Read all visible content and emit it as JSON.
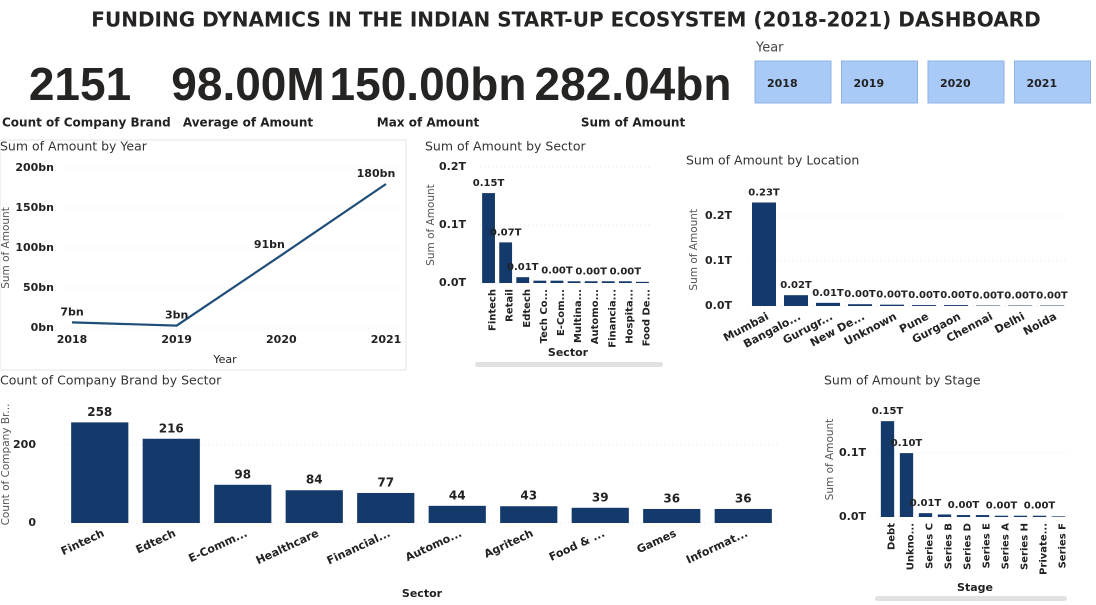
{
  "title": "FUNDING DYNAMICS IN THE INDIAN START-UP ECOSYSTEM (2018-2021) DASHBOARD",
  "kpis": [
    {
      "value": "2151",
      "label": "Count of Company Brand"
    },
    {
      "value": "98.00M",
      "label": "Average of Amount"
    },
    {
      "value": "150.00bn",
      "label": "Max of Amount"
    },
    {
      "value": "282.04bn",
      "label": "Sum of Amount"
    }
  ],
  "slicer": {
    "title": "Year",
    "options": [
      "2018",
      "2019",
      "2020",
      "2021"
    ]
  },
  "chart_data": [
    {
      "type": "line",
      "title": "Sum of Amount by Year",
      "x_label": "Year",
      "y_label": "Sum of Amount",
      "categories": [
        "2018",
        "2019",
        "2020",
        "2021"
      ],
      "values": [
        7,
        3,
        91,
        180
      ],
      "value_labels": [
        "7bn",
        "3bn",
        "91bn",
        "180bn"
      ],
      "color": "#1f4e79",
      "ylim": [
        0,
        200
      ],
      "yticks": [
        {
          "value": 0,
          "label": "0bn"
        },
        {
          "value": 50,
          "label": "50bn"
        },
        {
          "value": 100,
          "label": "100bn"
        },
        {
          "value": 150,
          "label": "150bn"
        },
        {
          "value": 200,
          "label": "200bn"
        }
      ],
      "grid": true
    },
    {
      "type": "bar",
      "title": "Sum of Amount by Sector",
      "x_label": "Sector",
      "y_label": "Sum of Amount",
      "categories": [
        "Fintech",
        "Retail",
        "Edtech",
        "Tech Co...",
        "E-Com...",
        "Multina...",
        "Automo...",
        "Financia...",
        "Hospita...",
        "Food De..."
      ],
      "values": [
        0.155,
        0.07,
        0.01,
        0.004,
        0.004,
        0.003,
        0.003,
        0.003,
        0.003,
        0.002
      ],
      "value_labels": [
        "0.15T",
        "0.07T",
        "0.01T",
        null,
        "0.00T",
        null,
        "0.00T",
        null,
        "0.00T",
        null
      ],
      "color": "#14396b",
      "ylim": [
        0,
        0.2
      ],
      "yticks": [
        {
          "value": 0,
          "label": "0.0T"
        },
        {
          "value": 0.1,
          "label": "0.1T"
        },
        {
          "value": 0.2,
          "label": "0.2T"
        }
      ],
      "grid": true
    },
    {
      "type": "bar",
      "title": "Sum of Amount by Location",
      "y_label": "Sum of Amount",
      "categories": [
        "Mumbai",
        "Bangalo...",
        "Gurugr...",
        "New De...",
        "Unknown",
        "Pune",
        "Gurgaon",
        "Chennai",
        "Delhi",
        "Noida"
      ],
      "values": [
        0.23,
        0.024,
        0.007,
        0.004,
        0.003,
        0.002,
        0.002,
        0.001,
        0.001,
        0.001
      ],
      "value_labels": [
        "0.23T",
        "0.02T",
        "0.01T",
        "0.00T",
        "0.00T",
        "0.00T",
        "0.00T",
        "0.00T",
        "0.00T",
        "0.00T"
      ],
      "color": "#14396b",
      "ylim": [
        0,
        0.25
      ],
      "yticks": [
        {
          "value": 0,
          "label": "0.0T"
        },
        {
          "value": 0.1,
          "label": "0.1T"
        },
        {
          "value": 0.2,
          "label": "0.2T"
        }
      ],
      "grid": true
    },
    {
      "type": "bar",
      "title": "Count of Company Brand by Sector",
      "x_label": "Sector",
      "y_label": "Count of Company Br...",
      "categories": [
        "Fintech",
        "Edtech",
        "E-Comm...",
        "Healthcare",
        "Financial...",
        "Automo...",
        "Agritech",
        "Food & ...",
        "Games",
        "Informat..."
      ],
      "values": [
        258,
        216,
        98,
        84,
        77,
        44,
        43,
        39,
        36,
        36
      ],
      "color": "#14396b",
      "ylim": [
        0,
        300
      ],
      "yticks": [
        0,
        200
      ],
      "grid": true
    },
    {
      "type": "bar",
      "title": "Sum of Amount by Stage",
      "x_label": "Stage",
      "y_label": "Sum of Amount",
      "categories": [
        "Debt",
        "Unkno...",
        "Series C",
        "Series B",
        "Series D",
        "Series E",
        "Series A",
        "Series H",
        "Private...",
        "Series F"
      ],
      "values": [
        0.15,
        0.1,
        0.006,
        0.004,
        0.003,
        0.003,
        0.002,
        0.002,
        0.002,
        0.001
      ],
      "value_labels": [
        "0.15T",
        "0.10T",
        "0.01T",
        null,
        "0.00T",
        null,
        "0.00T",
        null,
        "0.00T",
        null
      ],
      "color": "#14396b",
      "ylim": [
        0,
        0.18
      ],
      "yticks": [
        {
          "value": 0,
          "label": "0.0T"
        },
        {
          "value": 0.1,
          "label": "0.1T"
        }
      ],
      "grid": true
    }
  ]
}
